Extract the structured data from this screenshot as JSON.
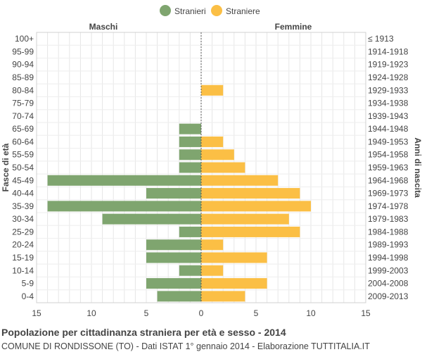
{
  "chart_data": {
    "type": "bar",
    "orientation": "horizontal-population-pyramid",
    "title": "Popolazione per cittadinanza straniera per età e sesso - 2014",
    "subtitle": "COMUNE DI RONDISSONE (TO) - Dati ISTAT 1° gennaio 2014 - Elaborazione TUTTITALIA.IT",
    "left_header": "Maschi",
    "right_header": "Femmine",
    "ylabel_left": "Fasce di età",
    "ylabel_right": "Anni di nascita",
    "legend": [
      {
        "label": "Stranieri",
        "color": "#7fa56f"
      },
      {
        "label": "Straniere",
        "color": "#fbbf45"
      }
    ],
    "legend_position": "top-center",
    "x_ticks": [
      "15",
      "10",
      "5",
      "0",
      "5",
      "10",
      "15"
    ],
    "xlim": [
      -15,
      15
    ],
    "grid": true,
    "age_groups": [
      "100+",
      "95-99",
      "90-94",
      "85-89",
      "80-84",
      "75-79",
      "70-74",
      "65-69",
      "60-64",
      "55-59",
      "50-54",
      "45-49",
      "40-44",
      "35-39",
      "30-34",
      "25-29",
      "20-24",
      "15-19",
      "10-14",
      "5-9",
      "0-4"
    ],
    "birth_years": [
      "≤ 1913",
      "1914-1918",
      "1919-1923",
      "1924-1928",
      "1929-1933",
      "1934-1938",
      "1939-1943",
      "1944-1948",
      "1949-1953",
      "1954-1958",
      "1959-1963",
      "1964-1968",
      "1969-1973",
      "1974-1978",
      "1979-1983",
      "1984-1988",
      "1989-1993",
      "1994-1998",
      "1999-2003",
      "2004-2008",
      "2009-2013"
    ],
    "series": [
      {
        "name": "Stranieri",
        "values": [
          0,
          0,
          0,
          0,
          0,
          0,
          0,
          2,
          2,
          2,
          2,
          14,
          5,
          14,
          9,
          2,
          5,
          5,
          2,
          5,
          4
        ]
      },
      {
        "name": "Straniere",
        "values": [
          0,
          0,
          0,
          0,
          2,
          0,
          0,
          0,
          2,
          3,
          4,
          7,
          9,
          10,
          8,
          9,
          2,
          6,
          2,
          6,
          4
        ]
      }
    ]
  }
}
